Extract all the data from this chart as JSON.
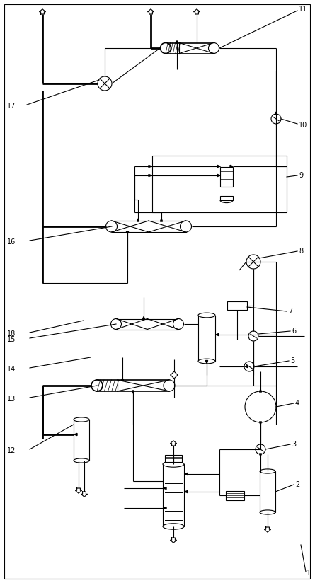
{
  "bg_color": "#ffffff",
  "line_color": "#000000",
  "fig_width": 4.45,
  "fig_height": 8.24,
  "dpi": 100
}
